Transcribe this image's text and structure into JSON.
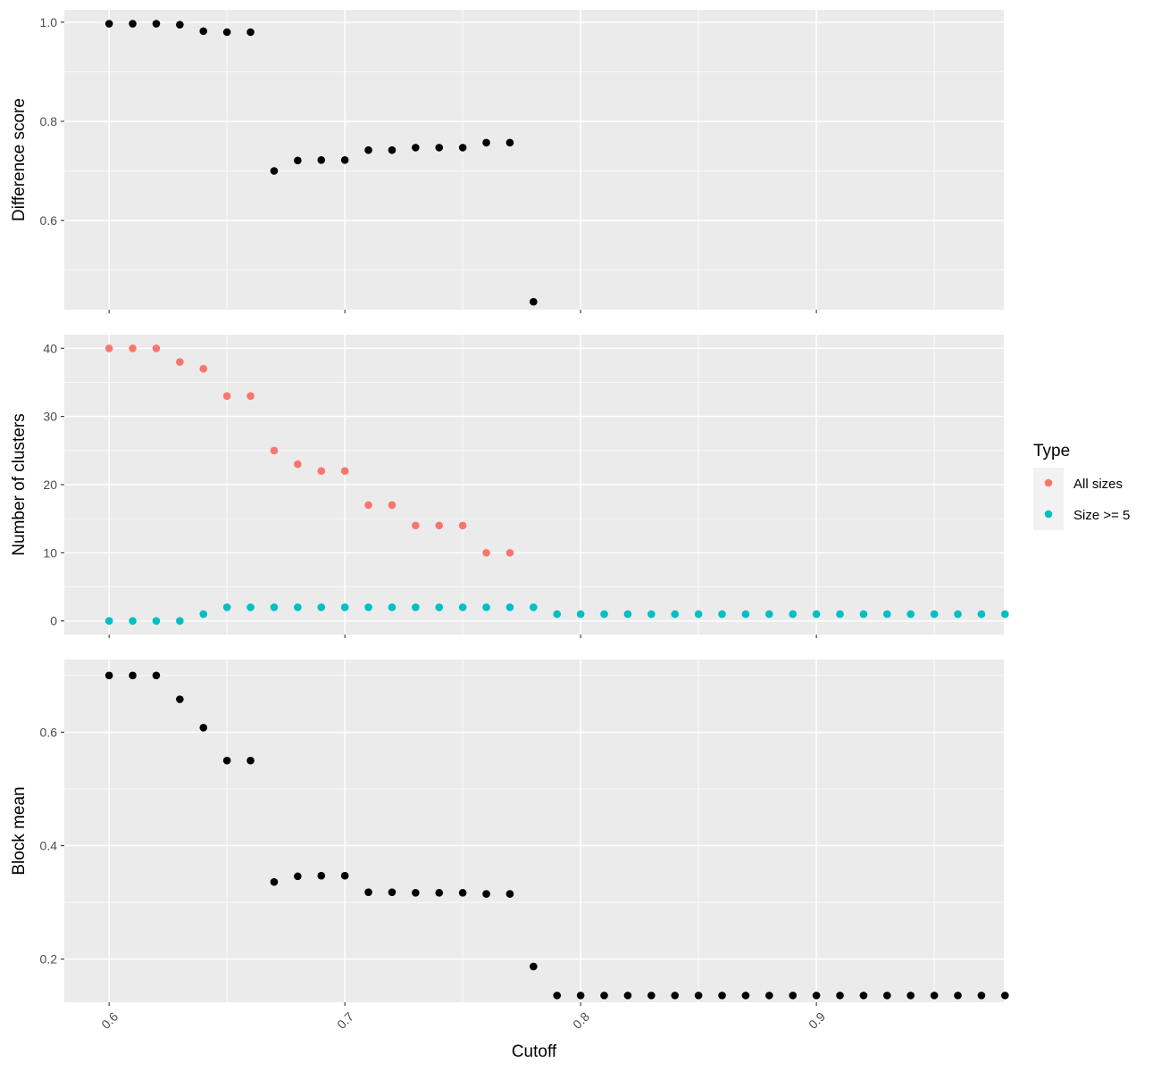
{
  "chart_data": [
    {
      "type": "scatter",
      "title": "",
      "xlabel": "",
      "ylabel": "Difference score",
      "ylim": [
        0.42,
        1.025
      ],
      "y_ticks": [
        0.6,
        0.8,
        1.0
      ],
      "y_tick_labels": [
        "0.6",
        "0.8",
        "1.0"
      ],
      "grid": true,
      "series": [
        {
          "color": "#000000",
          "x": [
            0.6,
            0.61,
            0.62,
            0.63,
            0.64,
            0.65,
            0.66,
            0.67,
            0.68,
            0.69,
            0.7,
            0.71,
            0.72,
            0.73,
            0.74,
            0.75,
            0.76,
            0.77,
            0.78
          ],
          "y": [
            0.997,
            0.997,
            0.997,
            0.995,
            0.982,
            0.98,
            0.98,
            0.7,
            0.721,
            0.722,
            0.722,
            0.742,
            0.742,
            0.747,
            0.747,
            0.747,
            0.757,
            0.757,
            0.436
          ]
        }
      ]
    },
    {
      "type": "scatter",
      "title": "",
      "xlabel": "",
      "ylabel": "Number of clusters",
      "ylim": [
        -2,
        42
      ],
      "y_ticks": [
        0,
        10,
        20,
        30,
        40
      ],
      "y_tick_labels": [
        "0",
        "10",
        "20",
        "30",
        "40"
      ],
      "grid": true,
      "series": [
        {
          "name": "All sizes",
          "color": "#F8766D",
          "x": [
            0.6,
            0.61,
            0.62,
            0.63,
            0.64,
            0.65,
            0.66,
            0.67,
            0.68,
            0.69,
            0.7,
            0.71,
            0.72,
            0.73,
            0.74,
            0.75,
            0.76,
            0.77
          ],
          "y": [
            40,
            40,
            40,
            38,
            37,
            33,
            33,
            25,
            23,
            22,
            22,
            17,
            17,
            14,
            14,
            14,
            10,
            10
          ]
        },
        {
          "name": "Size >= 5",
          "color": "#00BFC4",
          "x": [
            0.6,
            0.61,
            0.62,
            0.63,
            0.64,
            0.65,
            0.66,
            0.67,
            0.68,
            0.69,
            0.7,
            0.71,
            0.72,
            0.73,
            0.74,
            0.75,
            0.76,
            0.77,
            0.78,
            0.79,
            0.8,
            0.81,
            0.82,
            0.83,
            0.84,
            0.85,
            0.86,
            0.87,
            0.88,
            0.89,
            0.9,
            0.91,
            0.92,
            0.93,
            0.94,
            0.95,
            0.96,
            0.97,
            0.98
          ],
          "y": [
            0,
            0,
            0,
            0,
            1,
            2,
            2,
            2,
            2,
            2,
            2,
            2,
            2,
            2,
            2,
            2,
            2,
            2,
            2,
            1,
            1,
            1,
            1,
            1,
            1,
            1,
            1,
            1,
            1,
            1,
            1,
            1,
            1,
            1,
            1,
            1,
            1,
            1,
            1
          ]
        }
      ]
    },
    {
      "type": "scatter",
      "title": "",
      "xlabel": "Cutoff",
      "ylabel": "Block mean",
      "ylim": [
        0.124,
        0.728
      ],
      "y_ticks": [
        0.2,
        0.4,
        0.6
      ],
      "y_tick_labels": [
        "0.2",
        "0.4",
        "0.6"
      ],
      "grid": true,
      "series": [
        {
          "color": "#000000",
          "x": [
            0.6,
            0.61,
            0.62,
            0.63,
            0.64,
            0.65,
            0.66,
            0.67,
            0.68,
            0.69,
            0.7,
            0.71,
            0.72,
            0.73,
            0.74,
            0.75,
            0.76,
            0.77,
            0.78,
            0.79,
            0.8,
            0.81,
            0.82,
            0.83,
            0.84,
            0.85,
            0.86,
            0.87,
            0.88,
            0.89,
            0.9,
            0.91,
            0.92,
            0.93,
            0.94,
            0.95,
            0.96,
            0.97,
            0.98
          ],
          "y": [
            0.7,
            0.7,
            0.7,
            0.658,
            0.608,
            0.55,
            0.55,
            0.336,
            0.346,
            0.347,
            0.347,
            0.318,
            0.318,
            0.317,
            0.317,
            0.317,
            0.315,
            0.315,
            0.187,
            0.136,
            0.136,
            0.136,
            0.136,
            0.136,
            0.136,
            0.136,
            0.136,
            0.136,
            0.136,
            0.136,
            0.136,
            0.136,
            0.136,
            0.136,
            0.136,
            0.136,
            0.136,
            0.136,
            0.136
          ]
        }
      ]
    }
  ],
  "x_axis": {
    "xlim": [
      0.581,
      0.9795
    ],
    "ticks": [
      0.6,
      0.7,
      0.8,
      0.9
    ],
    "tick_labels": [
      "0.6",
      "0.7",
      "0.8",
      "0.9"
    ],
    "title": "Cutoff"
  },
  "legend": {
    "title": "Type",
    "position": "right",
    "items": [
      {
        "label": "All sizes",
        "color": "#F8766D"
      },
      {
        "label": "Size >= 5",
        "color": "#00BFC4"
      }
    ]
  },
  "theme": {
    "panel_background": "#EBEBEB",
    "grid_color": "#FFFFFF"
  }
}
